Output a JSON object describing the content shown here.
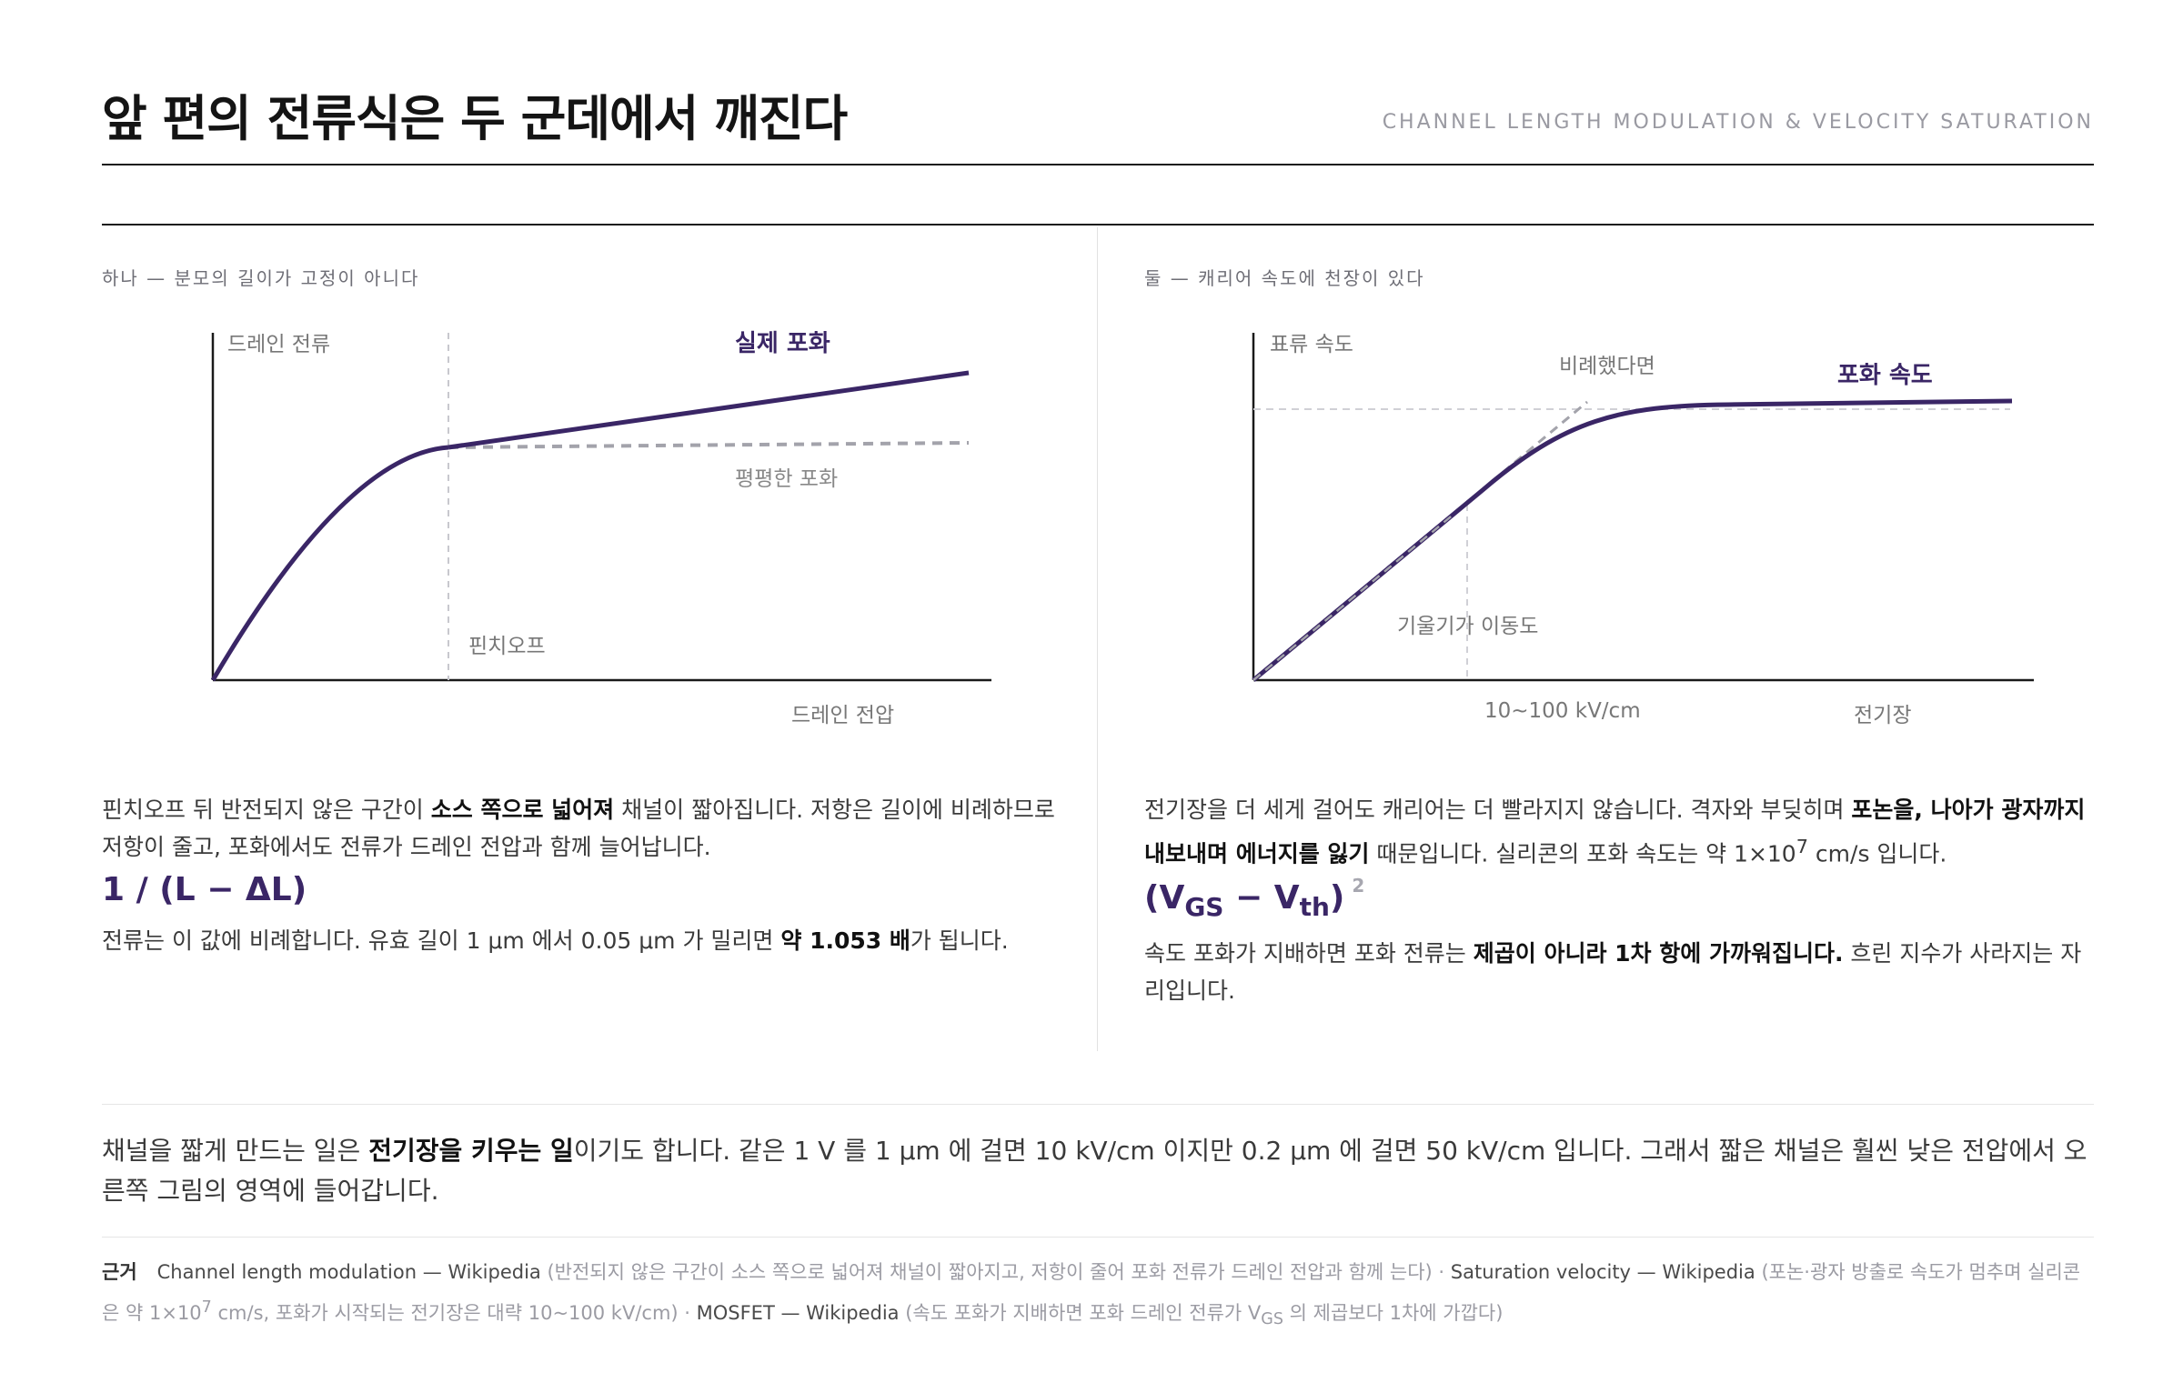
{
  "header": {
    "title": "앞 편의 전류식은 두 군데에서 깨진다",
    "subtitle_en": "CHANNEL LENGTH MODULATION & VELOCITY SATURATION"
  },
  "left": {
    "section_label": "하나 — 분모의 길이가 고정이 아니다",
    "diagram": {
      "y_label": "드레인 전류",
      "x_label": "드레인 전압",
      "real_label": "실제 포화",
      "flat_label": "평평한 포화",
      "pinch_label": "핀치오프"
    },
    "para1_a": "핀치오프 뒤 반전되지 않은 구간이 ",
    "para1_b": "소스 쪽으로 넓어져",
    "para1_c": " 채널이 짧아집니다. 저항은 길이에 비례하므로 저항이 줄고, 포화에서도 전류가 드레인 전압과 함께 늘어납니다.",
    "formula": "1 / (L − ΔL)",
    "para2_a": "전류는 이 값에 비례합니다. 유효 길이 1 μm 에서 0.05 μm 가 밀리면 ",
    "para2_b": "약 1.053 배",
    "para2_c": "가 됩니다."
  },
  "right": {
    "section_label": "둘 — 캐리어 속도에 천장이 있다",
    "diagram": {
      "y_label": "표류 속도",
      "x_label": "전기장",
      "sat_label": "포화 속도",
      "prop_label": "비례했다면",
      "slope_label": "기울기가 이동도",
      "field_label": "10~100 kV/cm"
    },
    "para1_a": "전기장을 더 세게 걸어도 캐리어는 더 빨라지지 않습니다. 격자와 부딪히며 ",
    "para1_b": "포논을, 나아가 광자까지 내보내며 에너지를 잃기",
    "para1_c": " 때문입니다. 실리콘의 포화 속도는 약 1×10",
    "para1_exp": "7",
    "para1_d": " cm/s 입니다.",
    "formula_open": "(V",
    "formula_sub1": "GS",
    "formula_mid": " − V",
    "formula_sub2": "th",
    "formula_close": ")",
    "formula_exp": "2",
    "para2_a": "속도 포화가 지배하면 포화 전류는 ",
    "para2_b": "제곱이 아니라 1차 항에 가까워집니다.",
    "para2_c": " 흐린 지수가 사라지는 자리입니다."
  },
  "bottom": {
    "para_a": "채널을 짧게 만드는 일은 ",
    "para_b": "전기장을 키우는 일",
    "para_c": "이기도 합니다. 같은 1 V 를 1 μm 에 걸면 10 kV/cm 이지만 0.2 μm 에 걸면 50 kV/cm 입니다. 그래서 짧은 채널은 훨씬 낮은 전압에서 오른쪽 그림의 영역에 들어갑니다."
  },
  "sources": {
    "head": "근거",
    "s1_name": "Channel length modulation — Wikipedia",
    "s1_note": " (반전되지 않은 구간이 소스 쪽으로 넓어져 채널이 짧아지고, 저항이 줄어 포화 전류가 드레인 전압과 함께 는다) · ",
    "s2_name": "Saturation velocity — Wikipedia",
    "s2_note_a": " (포논·광자 방출로 속도가 멈추며 실리콘은 약 1×10",
    "s2_exp": "7",
    "s2_note_b": " cm/s, 포화가 시작되는 전기장은 대략 10~100 kV/cm) · ",
    "s3_name": "MOSFET — Wikipedia",
    "s3_note_a": " (속도 포화가 지배하면 포화 드레인 전류가 V",
    "s3_sub": "GS",
    "s3_note_b": " 의 제곱보다 1차에 가깝다)"
  },
  "colors": {
    "accent": "#3a2666",
    "dashed": "#a3a3ab",
    "axis": "#1a1a1a"
  }
}
